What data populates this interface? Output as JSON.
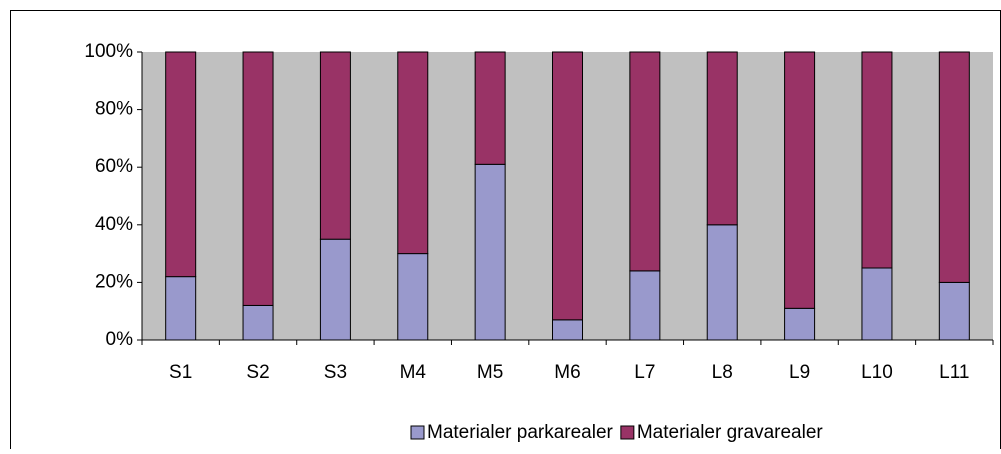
{
  "chart_data": {
    "type": "stacked_bar_percent",
    "categories": [
      "S1",
      "S2",
      "S3",
      "M4",
      "M5",
      "M6",
      "L7",
      "L8",
      "L9",
      "L10",
      "L11"
    ],
    "series": [
      {
        "name": "Materialer parkarealer",
        "color": "#9999cc",
        "values": [
          22,
          12,
          35,
          30,
          61,
          7,
          24,
          40,
          11,
          25,
          20
        ]
      },
      {
        "name": "Materialer gravarealer",
        "color": "#993366",
        "values": [
          78,
          88,
          65,
          70,
          39,
          93,
          76,
          60,
          89,
          75,
          80
        ]
      }
    ],
    "ylim": [
      0,
      100
    ],
    "yticks": [
      {
        "value": 0,
        "label": "0%"
      },
      {
        "value": 20,
        "label": "20%"
      },
      {
        "value": 40,
        "label": "40%"
      },
      {
        "value": 60,
        "label": "60%"
      },
      {
        "value": 80,
        "label": "80%"
      },
      {
        "value": 100,
        "label": "100%"
      }
    ],
    "plot_background": "#c0c0c0",
    "legend": "bottom"
  }
}
